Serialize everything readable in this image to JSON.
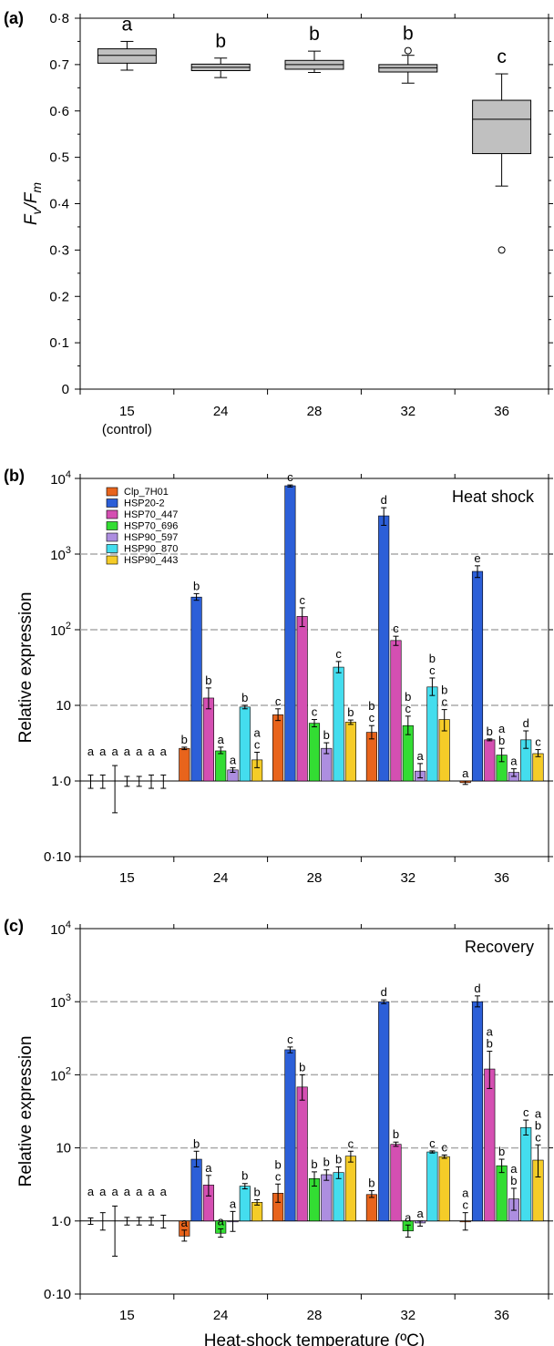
{
  "chart_data": [
    {
      "panel": "(a)",
      "type": "box",
      "ylabel": "Fv/Fm",
      "ylim": [
        0,
        0.8
      ],
      "yticks": [
        "0",
        "0·1",
        "0·2",
        "0·3",
        "0·4",
        "0·5",
        "0·6",
        "0·7",
        "0·8"
      ],
      "categories": [
        "15",
        "24",
        "28",
        "32",
        "36"
      ],
      "category_sublabels": [
        "(control)",
        "",
        "",
        "",
        ""
      ],
      "boxes": [
        {
          "whisker_low": 0.688,
          "q1": 0.703,
          "median": 0.72,
          "q3": 0.734,
          "whisker_high": 0.75,
          "outliers": [],
          "letter": "a"
        },
        {
          "whisker_low": 0.672,
          "q1": 0.687,
          "median": 0.694,
          "q3": 0.701,
          "whisker_high": 0.714,
          "outliers": [],
          "letter": "b"
        },
        {
          "whisker_low": 0.683,
          "q1": 0.69,
          "median": 0.7,
          "q3": 0.709,
          "whisker_high": 0.729,
          "outliers": [],
          "letter": "b"
        },
        {
          "whisker_low": 0.66,
          "q1": 0.684,
          "median": 0.693,
          "q3": 0.7,
          "whisker_high": 0.72,
          "outliers": [
            0.73
          ],
          "letter": "b"
        },
        {
          "whisker_low": 0.438,
          "q1": 0.508,
          "median": 0.582,
          "q3": 0.623,
          "whisker_high": 0.68,
          "outliers": [
            0.3
          ],
          "letter": "c"
        }
      ]
    },
    {
      "panel": "(b)",
      "type": "bar",
      "title": "Heat shock",
      "ylabel": "Relative expression",
      "log_scale": true,
      "ylim": [
        0.1,
        10000
      ],
      "baseline": 1,
      "yticks": [
        {
          "value": 0.1,
          "label": "0·10"
        },
        {
          "value": 1,
          "label": "1·0"
        },
        {
          "value": 10,
          "label": "10"
        },
        {
          "value": 100,
          "label": "10²"
        },
        {
          "value": 1000,
          "label": "10³"
        },
        {
          "value": 10000,
          "label": "10⁴"
        }
      ],
      "dashed_gridlines": [
        10,
        100,
        1000
      ],
      "categories": [
        "15",
        "24",
        "28",
        "32",
        "36"
      ],
      "series": [
        {
          "name": "Clp_7H01",
          "color": "#e8641c",
          "values": [
            1,
            2.7,
            7.5,
            4.4,
            0.95
          ],
          "err_low": [
            0.8,
            2.6,
            6.3,
            3.6,
            0.9
          ],
          "err_high": [
            1.2,
            2.8,
            9,
            5.4,
            1
          ],
          "letters": [
            "a",
            "b",
            "c",
            "b c",
            "a"
          ]
        },
        {
          "name": "HSP20-2",
          "color": "#2c5fd8",
          "values": [
            1,
            270,
            8000,
            3200,
            590
          ],
          "err_low": [
            0.8,
            245,
            7700,
            2400,
            490
          ],
          "err_high": [
            1.2,
            300,
            8200,
            4100,
            700
          ],
          "letters": [
            "a",
            "b",
            "c",
            "d",
            "e"
          ]
        },
        {
          "name": "HSP70_447",
          "color": "#d44fb2",
          "values": [
            1,
            12.5,
            150,
            72,
            3.5
          ],
          "err_low": [
            0.38,
            9,
            110,
            62,
            3.4
          ],
          "err_high": [
            1.6,
            17,
            195,
            82,
            3.6
          ],
          "letters": [
            "a",
            "b",
            "c",
            "c",
            "b"
          ]
        },
        {
          "name": "HSP70_696",
          "color": "#33dd33",
          "values": [
            1,
            2.5,
            5.8,
            5.4,
            2.2
          ],
          "err_low": [
            0.85,
            2.3,
            5.2,
            4.1,
            1.8
          ],
          "err_high": [
            1.15,
            2.8,
            6.5,
            7.2,
            2.7
          ],
          "letters": [
            "a",
            "a",
            "c",
            "b c",
            "a b"
          ]
        },
        {
          "name": "HSP90_597",
          "color": "#ad8ee0",
          "values": [
            1,
            1.4,
            2.7,
            1.35,
            1.3
          ],
          "err_low": [
            0.85,
            1.3,
            2.3,
            1.1,
            1.15
          ],
          "err_high": [
            1.15,
            1.5,
            3.2,
            1.7,
            1.45
          ],
          "letters": [
            "a",
            "a",
            "b",
            "a",
            "a"
          ]
        },
        {
          "name": "HSP90_870",
          "color": "#44ddee",
          "values": [
            1,
            9.5,
            32,
            17.5,
            3.5
          ],
          "err_low": [
            0.8,
            9,
            27,
            13.5,
            2.7
          ],
          "err_high": [
            1.2,
            10,
            38,
            23,
            4.6
          ],
          "letters": [
            "a",
            "b",
            "c",
            "b c",
            "d"
          ]
        },
        {
          "name": "HSP90_443",
          "color": "#f5cc28",
          "values": [
            1,
            1.9,
            6,
            6.5,
            2.3
          ],
          "err_low": [
            0.8,
            1.5,
            5.6,
            4.6,
            2.1
          ],
          "err_high": [
            1.2,
            2.4,
            6.4,
            8.8,
            2.6
          ],
          "letters": [
            "a",
            "a c",
            "b",
            "b c",
            "c"
          ]
        }
      ]
    },
    {
      "panel": "(c)",
      "type": "bar",
      "title": "Recovery",
      "ylabel": "Relative expression",
      "xlabel": "Heat-shock temperature (ºC)",
      "log_scale": true,
      "ylim": [
        0.1,
        10000
      ],
      "baseline": 1,
      "yticks": [
        {
          "value": 0.1,
          "label": "0·10"
        },
        {
          "value": 1,
          "label": "1·0"
        },
        {
          "value": 10,
          "label": "10"
        },
        {
          "value": 100,
          "label": "10²"
        },
        {
          "value": 1000,
          "label": "10³"
        },
        {
          "value": 10000,
          "label": "10⁴"
        }
      ],
      "dashed_gridlines": [
        10,
        100,
        1000
      ],
      "categories": [
        "15",
        "24",
        "28",
        "32",
        "36"
      ],
      "series": [
        {
          "name": "Clp_7H01",
          "color": "#e8641c",
          "values": [
            1,
            0.62,
            2.4,
            2.3,
            1.0
          ],
          "err_low": [
            0.9,
            0.53,
            1.8,
            2.1,
            0.75
          ],
          "err_high": [
            1.1,
            0.75,
            3.2,
            2.6,
            1.3
          ],
          "letters": [
            "a",
            "a",
            "b c",
            "b",
            "a c"
          ]
        },
        {
          "name": "HSP20-2",
          "color": "#2c5fd8",
          "values": [
            1,
            7,
            220,
            1000,
            1000
          ],
          "err_low": [
            0.75,
            5.5,
            200,
            940,
            850
          ],
          "err_high": [
            1.3,
            9,
            240,
            1060,
            1200
          ],
          "letters": [
            "a",
            "b",
            "c",
            "d",
            "d"
          ]
        },
        {
          "name": "HSP70_447",
          "color": "#d44fb2",
          "values": [
            1,
            3.1,
            68,
            11.2,
            120
          ],
          "err_low": [
            0.33,
            2.2,
            45,
            10.5,
            65
          ],
          "err_high": [
            1.6,
            4.2,
            100,
            12,
            210
          ],
          "letters": [
            "a",
            "a",
            "b",
            "b",
            "a b"
          ]
        },
        {
          "name": "HSP70_696",
          "color": "#33dd33",
          "values": [
            1,
            0.68,
            3.8,
            0.73,
            5.7
          ],
          "err_low": [
            0.88,
            0.6,
            3,
            0.6,
            4.6
          ],
          "err_high": [
            1.12,
            0.78,
            4.7,
            0.88,
            7
          ]
        },
        {
          "name": "HSP90_597",
          "color": "#ad8ee0",
          "values": [
            1,
            1.0,
            4.3,
            0.94,
            2.0
          ],
          "err_low": [
            0.88,
            0.72,
            3.6,
            0.85,
            1.4
          ],
          "err_high": [
            1.12,
            1.35,
            5,
            1.0,
            2.8
          ],
          "letters": [
            "a",
            "a",
            "b",
            "a",
            "a b"
          ]
        },
        {
          "name": "HSP90_870",
          "color": "#44ddee",
          "values": [
            1,
            3,
            4.6,
            8.8,
            19
          ],
          "err_low": [
            0.88,
            2.75,
            3.8,
            8.5,
            15
          ],
          "err_high": [
            1.12,
            3.25,
            5.5,
            9.1,
            24
          ],
          "letters": [
            "a",
            "b",
            "b",
            "c",
            "c"
          ]
        },
        {
          "name": "HSP90_443",
          "color": "#f5cc28",
          "values": [
            1,
            1.8,
            7.7,
            7.6,
            6.8
          ],
          "err_low": [
            0.8,
            1.65,
            6.4,
            7.2,
            4
          ],
          "err_high": [
            1.2,
            1.95,
            9,
            8,
            11
          ],
          "letters": [
            "a",
            "b",
            "c",
            "c",
            "a b c"
          ]
        }
      ],
      "letters_green": [
        "a",
        "a",
        "b",
        "a",
        "b"
      ]
    }
  ]
}
